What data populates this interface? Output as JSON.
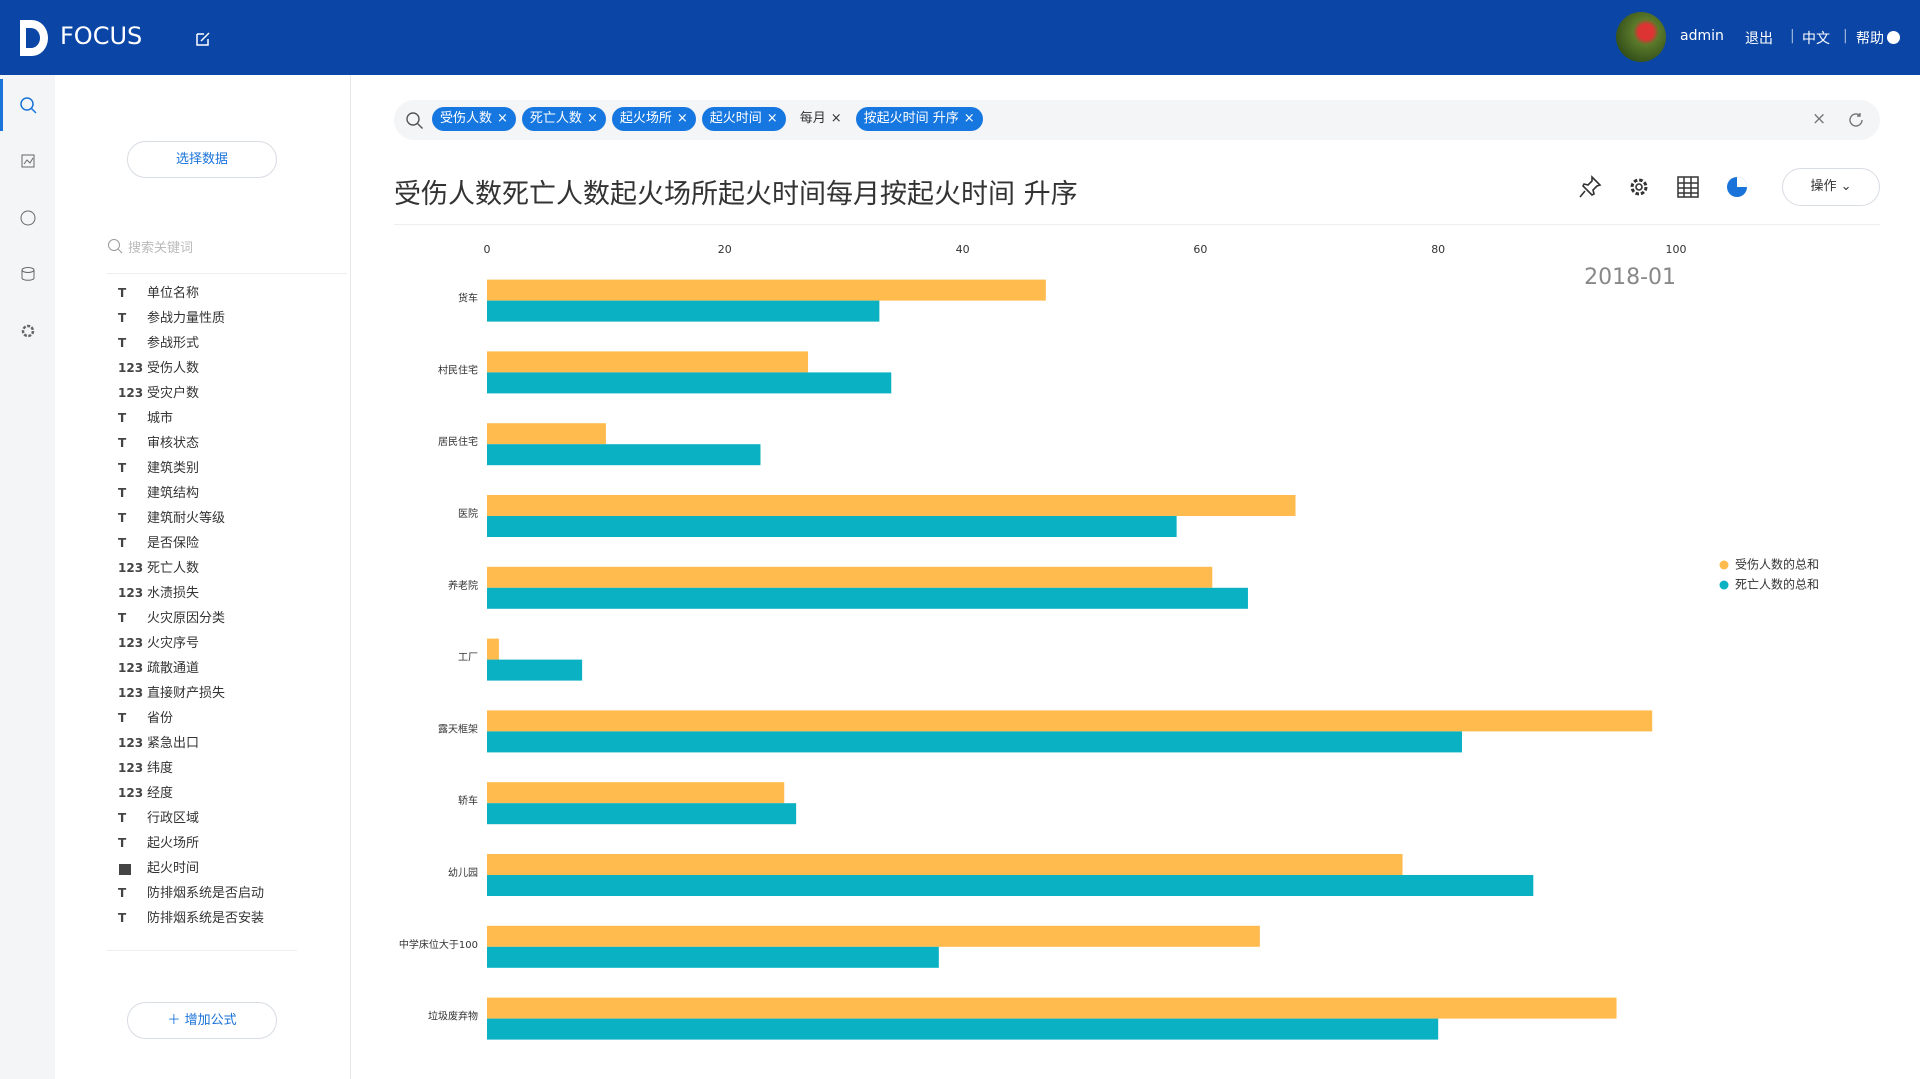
{
  "header": {
    "brand": "FOCUS",
    "user": "admin",
    "links": [
      "退出",
      "中文",
      "帮助"
    ]
  },
  "sidebar": {
    "select_button": "选择数据",
    "search_placeholder": "搜索关键词",
    "add_formula": "增加公式",
    "fields": [
      {
        "icon": "T",
        "name": "单位名称"
      },
      {
        "icon": "T",
        "name": "参战力量性质"
      },
      {
        "icon": "T",
        "name": "参战形式"
      },
      {
        "icon": "123",
        "name": "受伤人数"
      },
      {
        "icon": "123",
        "name": "受灾户数"
      },
      {
        "icon": "T",
        "name": "城市"
      },
      {
        "icon": "T",
        "name": "审核状态"
      },
      {
        "icon": "T",
        "name": "建筑类别"
      },
      {
        "icon": "T",
        "name": "建筑结构"
      },
      {
        "icon": "T",
        "name": "建筑耐火等级"
      },
      {
        "icon": "T",
        "name": "是否保险"
      },
      {
        "icon": "123",
        "name": "死亡人数"
      },
      {
        "icon": "123",
        "name": "水渍损失"
      },
      {
        "icon": "T",
        "name": "火灾原因分类"
      },
      {
        "icon": "123",
        "name": "火灾序号"
      },
      {
        "icon": "123",
        "name": "疏散通道"
      },
      {
        "icon": "123",
        "name": "直接财产损失"
      },
      {
        "icon": "T",
        "name": "省份"
      },
      {
        "icon": "123",
        "name": "紧急出口"
      },
      {
        "icon": "123",
        "name": "纬度"
      },
      {
        "icon": "123",
        "name": "经度"
      },
      {
        "icon": "T",
        "name": "行政区域"
      },
      {
        "icon": "T",
        "name": "起火场所"
      },
      {
        "name": "起火时间"
      },
      {
        "icon": "T",
        "name": "防排烟系统是否启动"
      },
      {
        "icon": "T",
        "name": "防排烟系统是否安装"
      }
    ]
  },
  "search": {
    "tokens": [
      {
        "text": "受伤人数",
        "highlighted": true
      },
      {
        "text": "死亡人数",
        "highlighted": true
      },
      {
        "text": "起火场所",
        "highlighted": true
      },
      {
        "text": "起火时间",
        "highlighted": true
      },
      {
        "text": "每月",
        "highlighted": false
      },
      {
        "text": "按起火时间 升序",
        "highlighted": true
      }
    ]
  },
  "toolbar": {
    "action_button": "操作"
  },
  "chart_data": {
    "type": "hbar",
    "title": "受伤人数死亡人数起火场所起火时间每月按起火时间 升序",
    "annotation": "2018-01",
    "categories": [
      "货车",
      "村民住宅",
      "居民住宅",
      "医院",
      "养老院",
      "工厂",
      "露天框架",
      "轿车",
      "幼儿园",
      "中学床位大于100",
      "垃圾废弃物"
    ],
    "series": [
      {
        "name": "受伤人数的总和",
        "color": "#ffbb4e",
        "values": [
          47,
          27,
          10,
          68,
          61,
          1,
          98,
          25,
          77,
          65,
          95
        ]
      },
      {
        "name": "死亡人数的总和",
        "color": "#09b1c3",
        "values": [
          33,
          34,
          23,
          58,
          64,
          8,
          82,
          26,
          88,
          38,
          80
        ]
      }
    ],
    "xlim": [
      0,
      100
    ],
    "xticks": [
      0,
      20,
      40,
      60,
      80,
      100
    ],
    "grid": false,
    "legend": "right"
  }
}
